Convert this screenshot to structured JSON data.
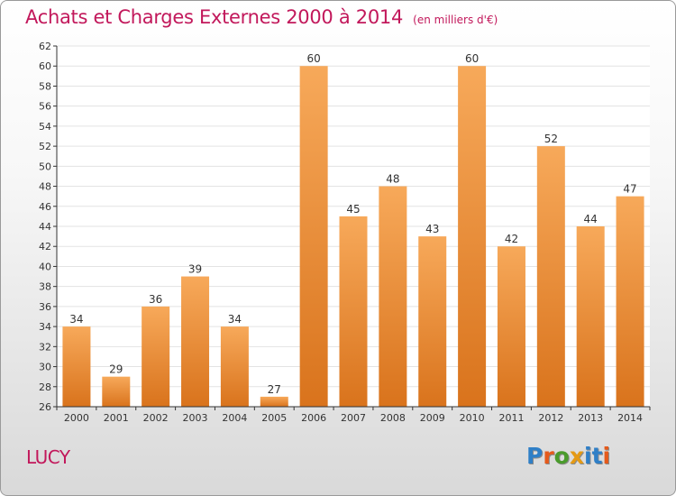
{
  "header": {
    "title": "Achats et Charges Externes 2000 à 2014",
    "subtitle": "(en milliers d'€)"
  },
  "footer": {
    "commune": "LUCY",
    "logo_text": "Proxiti"
  },
  "colors": {
    "title": "#c2185b",
    "bar_light": "#f7a95a",
    "bar_dark": "#d9731c",
    "grid": "#e3e3e3",
    "axis": "#333333",
    "logo_letters": [
      "#2f7fc7",
      "#e55a1c",
      "#4a9b2c",
      "#e59a14",
      "#2f7fc7",
      "#2f7fc7",
      "#e55a1c"
    ]
  },
  "chart_data": {
    "type": "bar",
    "title": "Achats et Charges Externes 2000 à 2014",
    "subtitle": "(en milliers d'€)",
    "categories": [
      "2000",
      "2001",
      "2002",
      "2003",
      "2004",
      "2005",
      "2006",
      "2007",
      "2008",
      "2009",
      "2010",
      "2011",
      "2012",
      "2013",
      "2014"
    ],
    "values": [
      34,
      29,
      36,
      39,
      34,
      27,
      60,
      45,
      48,
      43,
      60,
      42,
      52,
      44,
      47
    ],
    "ylim": [
      26,
      62
    ],
    "yticks": [
      26,
      28,
      30,
      32,
      34,
      36,
      38,
      40,
      42,
      44,
      46,
      48,
      50,
      52,
      54,
      56,
      58,
      60,
      62
    ],
    "grid": true,
    "data_labels": true
  }
}
